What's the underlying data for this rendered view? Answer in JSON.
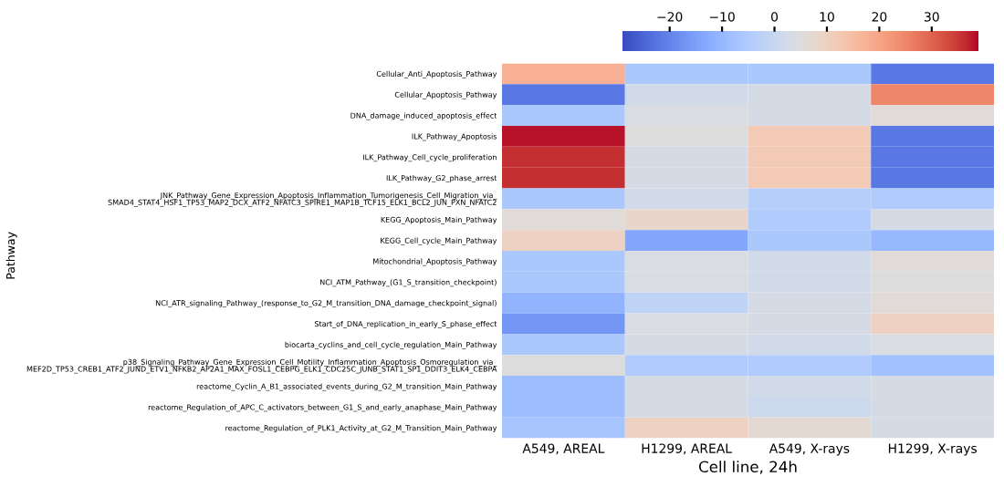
{
  "chart_data": {
    "type": "heatmap",
    "xlabel": "Cell line, 24h",
    "ylabel": "Pathway",
    "categories": [
      "A549, AREAL",
      "H1299, AREAL",
      "A549, X-rays",
      "H1299, X-rays"
    ],
    "y_categories": [
      "Cellular_Anti_Apoptosis_Pathway",
      "Cellular_Apoptosis_Pathway",
      "DNA_damage_induced_apoptosis_effect",
      "ILK_Pathway_Apoptosis",
      "ILK_Pathway_Cell_cycle_proliferation",
      "ILK_Pathway_G2_phase_arrest",
      "JNK_Pathway_Gene_Expression_Apoptosis_Inflammation_Tumorigenesis_Cell_Migration_via_\nSMAD4_STAT4_HSF1_TP53_MAP2_DCX_ATF2_NFATC3_SPIRE1_MAP1B_TCF15_ELK1_BCL2_JUN_PXN_NFATC2",
      "KEGG_Apoptosis_Main_Pathway",
      "KEGG_Cell_cycle_Main_Pathway",
      "Mitochondrial_Apoptosis_Pathway",
      "NCI_ATM_Pathway_(G1_S_transition_checkpoint)",
      "NCI_ATR_signaling_Pathway_(response_to_G2_M_transition_DNA_damage_checkpoint_signal)",
      "Start_of_DNA_replication_in_early_S_phase_effect",
      "biocarta_cyclins_and_cell_cycle_regulation_Main_Pathway",
      "p38_Signaling_Pathway_Gene_Expression_Cell_Motility_Inflammation_Apoptosis_Osmoregulation_via_\nMEF2D_TP53_CREB1_ATF2_JUND_ETV1_NFKB2_AP2A1_MAX_FOSL1_CEBPG_ELK1_CDC25C_JUNB_STAT1_SP1_DDIT3_ELK4_CEBPA",
      "reactome_Cyclin_A_B1_associated_events_during_G2_M_transition_Main_Pathway",
      "reactome_Regulation_of_APC_C_activators_between_G1_S_and_early_anaphase_Main_Pathway",
      "reactome_Regulation_of_PLK1_Activity_at_G2_M_Transition_Main_Pathway"
    ],
    "cells": [
      [
        18,
        -6,
        -6,
        -22
      ],
      [
        -22,
        2,
        3,
        25
      ],
      [
        -6,
        4,
        3,
        6
      ],
      [
        38,
        5,
        12,
        -22
      ],
      [
        36,
        3,
        12,
        -22
      ],
      [
        36,
        3,
        12,
        -22
      ],
      [
        -6,
        2,
        -4,
        -5
      ],
      [
        6,
        8,
        -5,
        3
      ],
      [
        10,
        -14,
        -6,
        -10
      ],
      [
        -6,
        4,
        2,
        6
      ],
      [
        -6,
        4,
        2,
        5
      ],
      [
        -11,
        -2,
        3,
        6
      ],
      [
        -17,
        4,
        3,
        10
      ],
      [
        -6,
        3,
        2,
        4
      ],
      [
        5,
        -5,
        -5,
        -8
      ],
      [
        -9,
        3,
        2,
        3
      ],
      [
        -9,
        3,
        1,
        3
      ],
      [
        -7,
        10,
        7,
        3
      ]
    ],
    "clim": [
      -29,
      39
    ],
    "cticks": [
      -20,
      -10,
      0,
      10,
      20,
      30
    ],
    "grid": false
  }
}
